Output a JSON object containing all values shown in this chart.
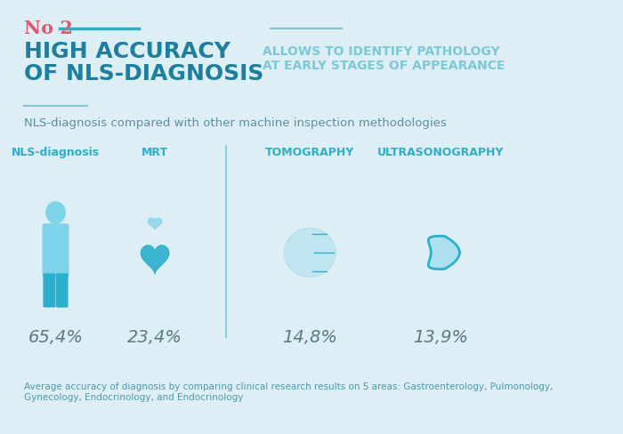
{
  "bg_color": "#ddeef5",
  "title_no": "No 2",
  "title_no_color": "#e05a6e",
  "title_main_line1": "HIGH ACCURACY",
  "title_main_line2": "OF NLS-DIAGNOSIS",
  "title_main_color": "#1a7fa0",
  "subtitle_right_line1": "ALLOWS TO IDENTIFY PATHOLOGY",
  "subtitle_right_line2": "AT EARLY STAGES OF APPEARANCE",
  "subtitle_right_color": "#7cc8d8",
  "compare_label": "NLS-diagnosis compared with other machine inspection methodologies",
  "compare_label_color": "#5a8fa0",
  "categories": [
    "NLS-diagnosis",
    "MRT",
    "TOMOGRAPHY",
    "ULTRASONOGRAPHY"
  ],
  "values": [
    "65,4%",
    "23,4%",
    "14,8%",
    "13,9%"
  ],
  "cat_color": "#2ab0cc",
  "value_color": "#5a7a8a",
  "divider_color": "#7cc8d8",
  "line_color": "#2ab0cc",
  "footnote": "Average accuracy of diagnosis by comparing clinical research results on 5 areas: Gastroenterology, Pulmonology,\nGynecology, Endocrinology, and Endocrinology",
  "footnote_color": "#4a9aaa"
}
